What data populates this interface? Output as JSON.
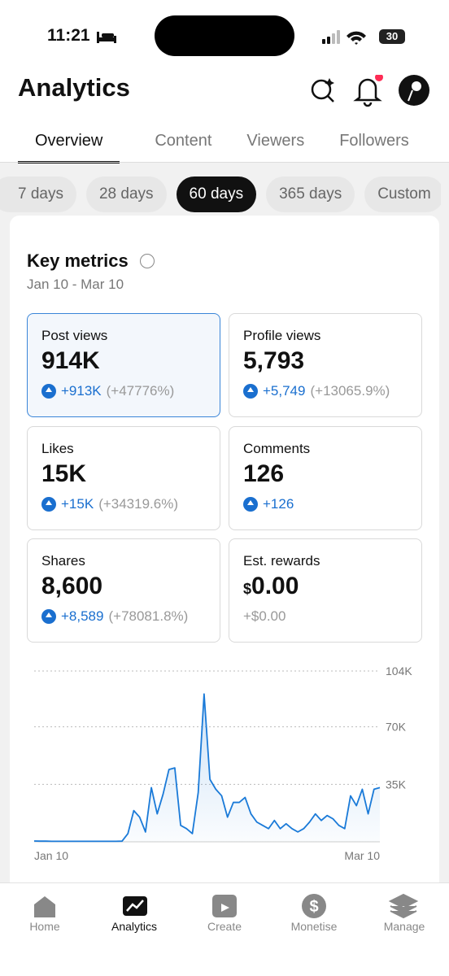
{
  "status": {
    "time": "11:21",
    "battery": "30"
  },
  "header": {
    "title": "Analytics"
  },
  "tabs": [
    "Overview",
    "Content",
    "Viewers",
    "Followers"
  ],
  "ranges": [
    "7 days",
    "28 days",
    "60 days",
    "365 days",
    "Custom"
  ],
  "card": {
    "title": "Key metrics",
    "date_range": "Jan 10 - Mar 10",
    "metrics": [
      {
        "label": "Post views",
        "value": "914K",
        "change": "+913K",
        "percent": "(+47776%)"
      },
      {
        "label": "Profile views",
        "value": "5,793",
        "change": "+5,749",
        "percent": "(+13065.9%)"
      },
      {
        "label": "Likes",
        "value": "15K",
        "change": "+15K",
        "percent": "(+34319.6%)"
      },
      {
        "label": "Comments",
        "value": "126",
        "change": "+126"
      },
      {
        "label": "Shares",
        "value": "8,600",
        "change": "+8,589",
        "percent": "(+78081.8%)"
      },
      {
        "label": "Est. rewards",
        "currency": "$",
        "value": "0.00",
        "change": "+$0.00"
      }
    ]
  },
  "chart_data": {
    "type": "line",
    "categories": [
      "Jan 10",
      null,
      null,
      null,
      null,
      null,
      null,
      null,
      null,
      null,
      null,
      null,
      null,
      null,
      null,
      null,
      null,
      null,
      null,
      null,
      null,
      null,
      null,
      null,
      null,
      null,
      null,
      null,
      null,
      null,
      null,
      null,
      null,
      null,
      null,
      null,
      null,
      null,
      null,
      null,
      null,
      null,
      null,
      null,
      null,
      null,
      null,
      null,
      null,
      null,
      null,
      null,
      null,
      null,
      null,
      null,
      null,
      null,
      null,
      "Mar 10"
    ],
    "series": [
      {
        "name": "Post views",
        "color": "#1a7ad8",
        "values": [
          500,
          400,
          400,
          300,
          300,
          300,
          300,
          300,
          300,
          300,
          300,
          300,
          300,
          300,
          300,
          400,
          5000,
          19000,
          15000,
          6000,
          33000,
          17000,
          29000,
          44000,
          45000,
          10000,
          8000,
          5000,
          30000,
          90000,
          38000,
          32000,
          28000,
          15000,
          24000,
          24000,
          27000,
          17000,
          12000,
          10000,
          8000,
          13000,
          8000,
          11000,
          8000,
          6000,
          8000,
          12000,
          17000,
          13000,
          16000,
          14000,
          10000,
          8000,
          28000,
          22000,
          32000,
          17000,
          32000,
          33000
        ]
      }
    ],
    "ylim": [
      0,
      104000
    ],
    "yticks": [
      {
        "value": 35000,
        "label": "35K"
      },
      {
        "value": 70000,
        "label": "70K"
      },
      {
        "value": 104000,
        "label": "104K"
      }
    ],
    "grid": true
  },
  "nav": [
    "Home",
    "Analytics",
    "Create",
    "Monetise",
    "Manage"
  ]
}
